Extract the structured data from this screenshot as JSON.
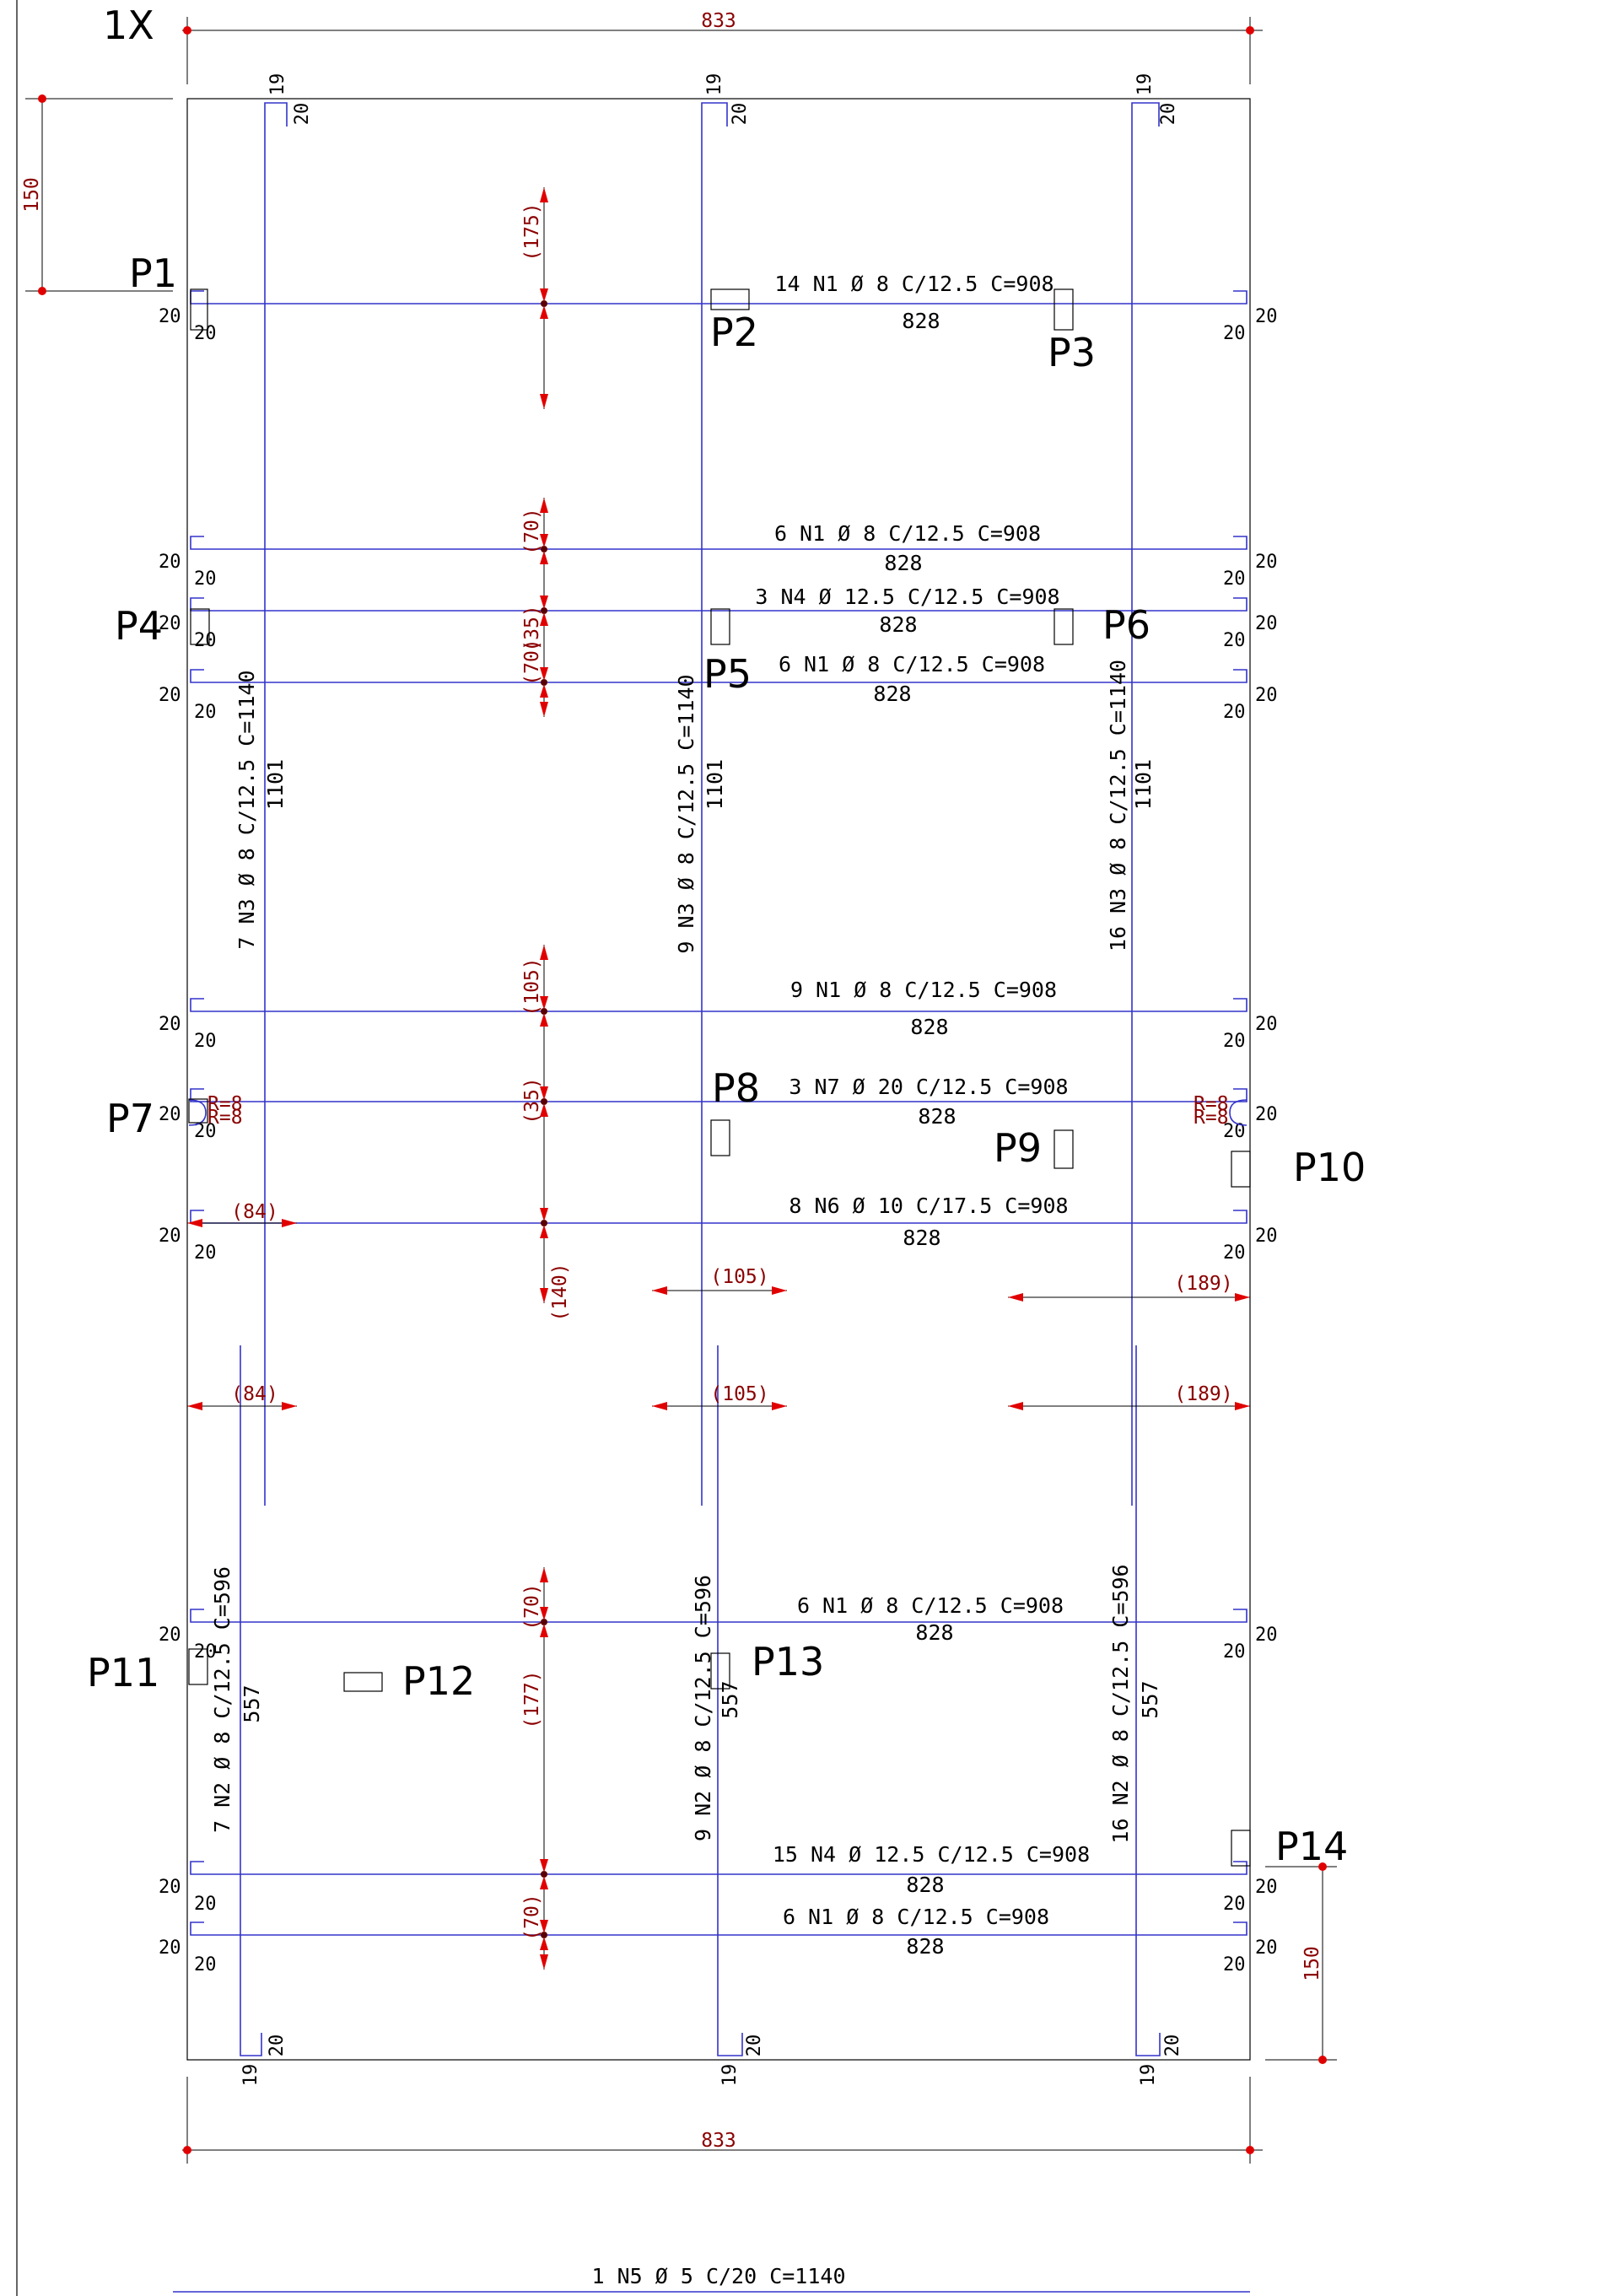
{
  "sheet": {
    "scale_label": "1X"
  },
  "dimensions": {
    "overall_width_top": "833",
    "overall_width_bottom": "833",
    "left_offset_top": "150",
    "right_offset_bottom": "150"
  },
  "pillars": [
    "P1",
    "P2",
    "P3",
    "P4",
    "P5",
    "P6",
    "P7",
    "P8",
    "P9",
    "P10",
    "P11",
    "P12",
    "P13",
    "P14"
  ],
  "bars_horizontal": [
    {
      "label": "14 N1 Ø 8 C/12.5 C=908",
      "length": "828"
    },
    {
      "label": "6 N1 Ø 8 C/12.5 C=908",
      "length": "828"
    },
    {
      "label": "3 N4 Ø 12.5 C/12.5 C=908",
      "length": "828"
    },
    {
      "label": "6 N1 Ø 8 C/12.5 C=908",
      "length": "828"
    },
    {
      "label": "9 N1 Ø 8 C/12.5 C=908",
      "length": "828"
    },
    {
      "label": "3 N7 Ø 20 C/12.5 C=908",
      "length": "828"
    },
    {
      "label": "8 N6 Ø 10 C/17.5 C=908",
      "length": "828"
    },
    {
      "label": "6 N1 Ø 8 C/12.5 C=908",
      "length": "828"
    },
    {
      "label": "15 N4 Ø 12.5 C/12.5 C=908",
      "length": "828"
    },
    {
      "label": "6 N1 Ø 8 C/12.5 C=908",
      "length": "828"
    }
  ],
  "bars_vertical": [
    {
      "label": "7 N3 Ø 8 C/12.5 C=1140",
      "length": "1101"
    },
    {
      "label": "9 N3 Ø 8 C/12.5 C=1140",
      "length": "1101"
    },
    {
      "label": "16 N3 Ø 8 C/12.5 C=1140",
      "length": "1101"
    },
    {
      "label": "7 N2 Ø 8 C/12.5 C=596",
      "length": "557"
    },
    {
      "label": "9 N2 Ø 8 C/12.5 C=596",
      "length": "557"
    },
    {
      "label": "16 N2 Ø 8 C/12.5 C=596",
      "length": "557"
    }
  ],
  "spacings_vertical": [
    "(175)",
    "(70)",
    "(35)",
    "(70)",
    "(105)",
    "(35)",
    "(140)",
    "(70)",
    "(177)",
    "(70)"
  ],
  "spacings_horizontal": [
    "(84)",
    "(84)",
    "(105)",
    "(105)",
    "(189)",
    "(189)"
  ],
  "hooks": {
    "hook_length": "20",
    "top_hook_end": "19",
    "bend_radius": "R=8"
  },
  "footer_bar": {
    "label": "1 N5 Ø 5 C/20 C=1140"
  }
}
